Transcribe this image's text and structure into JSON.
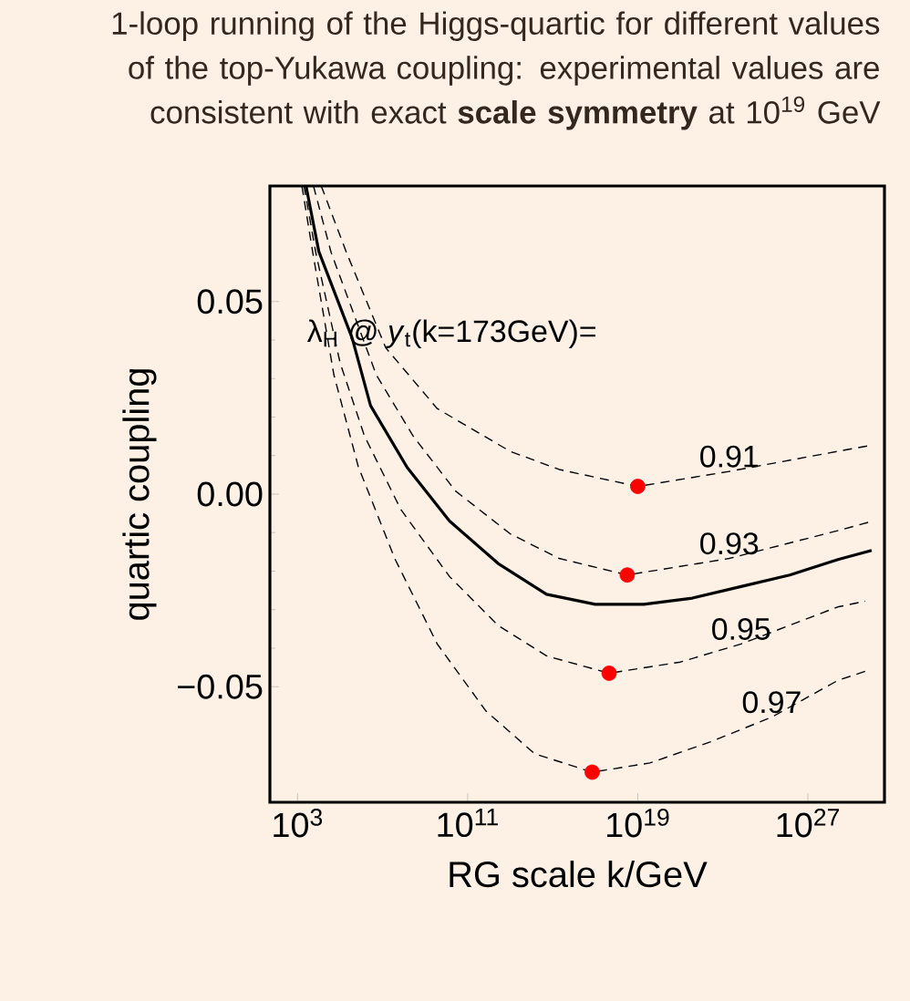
{
  "chart_data": {
    "type": "line",
    "title": "1-loop running of the Higgs-quartic for different values of the top-Yukawa coupling: experimental values are consistent with exact **scale symmetry** at 10$^{19}$ GeV",
    "xlabel": "RG scale k/GeV",
    "ylabel": "quartic coupling",
    "log": "x",
    "xlim": [
      50,
      4e+30
    ],
    "ylim": [
      -0.08,
      0.08
    ],
    "xticks": [
      {
        "value": 1000,
        "label": "10$^{3}$"
      },
      {
        "value": 100000000000.0,
        "label": "10$^{11}$"
      },
      {
        "value": 1e+19,
        "label": "10$^{19}$"
      },
      {
        "value": 1e+27,
        "label": "10$^{27}$"
      }
    ],
    "yticks": [
      {
        "value": -0.05,
        "label": "−0.05"
      },
      {
        "value": 0,
        "label": "0.00"
      },
      {
        "value": 0.05,
        "label": "0.05"
      }
    ],
    "annotations": [
      "λ$_{H}$ @ *y*$_{t}$(k=173GeV)="
    ],
    "series": [
      {
        "color": "#000000",
        "line_style": "solid",
        "x": [
          2500.0,
          10000.0,
          370000.0,
          2700000.0,
          140000000.0,
          14000000000.0,
          2700000000000.0,
          510000000000000.0,
          1e+17,
          1.9e+19,
          3.7e+21,
          7.2e+23,
          1.4e+26,
          2.6e+28,
          1e+30
        ],
        "values": [
          0.08,
          0.063,
          0.0405,
          0.023,
          0.007,
          -0.007,
          -0.018,
          -0.026,
          -0.0286,
          -0.0286,
          -0.027,
          -0.024,
          -0.021,
          -0.017,
          -0.0146
        ]
      },
      {
        "name": "0.91",
        "color": "#000000",
        "line_style": "dashed",
        "x": [
          13000.0,
          200000.0,
          14000000.0,
          3700000000.0,
          10000000000000.0,
          2000000000000000.0,
          1e+19,
          2e+23,
          2.5e+28,
          1e+30
        ],
        "values": [
          0.08,
          0.0627,
          0.038,
          0.0222,
          0.0111,
          0.0064,
          0.002,
          0.0059,
          0.0111,
          0.0127
        ]
      },
      {
        "name": "0.93",
        "color": "#000000",
        "line_style": "dashed",
        "x": [
          5600.0,
          38000.0,
          5000000.0,
          270000000.0,
          27000000000.0,
          10000000000000.0,
          2000000000000000.0,
          3.2e+18,
          2e+23,
          2.5e+28,
          1e+30
        ],
        "values": [
          0.08,
          0.0627,
          0.031,
          0.0151,
          0.0008,
          -0.0103,
          -0.0167,
          -0.021,
          -0.0167,
          -0.0095,
          -0.0071
        ]
      },
      {
        "name": "0.95",
        "color": "#000000",
        "line_style": "dashed",
        "x": [
          2000.0,
          7200.0,
          100000.0,
          1400000.0,
          72000000.0,
          14000000000.0,
          2700000000000.0,
          510000000000000.0,
          4.5e+17,
          1e+21,
          7.2e+23,
          2.5e+28,
          5e+29
        ],
        "values": [
          0.08,
          0.0627,
          0.0341,
          0.0151,
          -0.004,
          -0.0214,
          -0.0341,
          -0.042,
          -0.0465,
          -0.0436,
          -0.0389,
          -0.0293,
          -0.0278
        ]
      },
      {
        "name": "0.97",
        "color": "#000000",
        "line_style": "dashed",
        "x": [
          1600.0,
          5200.0,
          51000.0,
          720000.0,
          37000000.0,
          3700000000.0,
          720000000000.0,
          140000000000000.0,
          7.2e+16,
          3.7e+19,
          2.7e+22,
          2e+25,
          2.5e+28,
          5e+29
        ],
        "values": [
          0.08,
          0.0627,
          0.031,
          0.0071,
          -0.0167,
          -0.0389,
          -0.0563,
          -0.0674,
          -0.0722,
          -0.0698,
          -0.0643,
          -0.0579,
          -0.0484,
          -0.046
        ]
      },
      {
        "type": "scatter",
        "marker": "circle",
        "color": "#ff0000",
        "x": [
          1e+19,
          3.2e+18,
          4.5e+17,
          7.2e+16
        ],
        "values": [
          0.002,
          -0.021,
          -0.0465,
          -0.0722
        ]
      }
    ]
  }
}
